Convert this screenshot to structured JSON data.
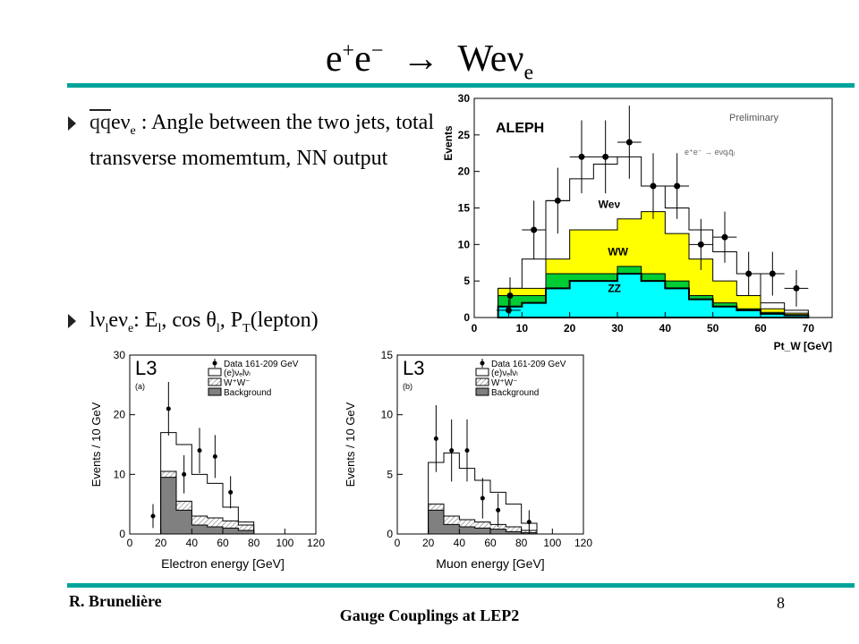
{
  "slide": {
    "title": {
      "main": "e",
      "sup1": "+",
      "mid": "e",
      "sup2": "−",
      "arrow": "→",
      "we": "Weν",
      "sub": "e"
    },
    "bullet1": {
      "prefix": "qq",
      "rest": "eν",
      "sub": "e",
      "text": " : Angle between the two jets, total transverse momemtum, NN output"
    },
    "bullet2": {
      "l": "lν",
      "sub1": "l",
      "e": "eν",
      "sub2": "e",
      "colon": ": E",
      "sub3": "l",
      "cos": ", cos θ",
      "sub4": "l",
      "pt": ", P",
      "sub5": "T",
      "lepton": "(lepton)"
    },
    "footer": {
      "author": "R. Brunelière",
      "center": "Gauge Couplings at LEP2",
      "page": "8"
    }
  },
  "colors": {
    "rule": "#00a49a",
    "ww": "#ffff00",
    "zz": "#00ffff",
    "green": "#00cc33"
  },
  "chart_data": [
    {
      "type": "bar",
      "title": "ALEPH",
      "subtitle": "Preliminary",
      "process_label": "e⁺e⁻ → eνqᵢq̄ⱼ",
      "xlabel": "Pt_W [GeV]",
      "ylabel": "Events",
      "xlim": [
        0,
        75
      ],
      "ylim": [
        0,
        30
      ],
      "xticks": [
        0,
        10,
        20,
        30,
        40,
        50,
        60,
        70
      ],
      "yticks": [
        0,
        5,
        10,
        15,
        20,
        25,
        30
      ],
      "bin_edges": [
        5,
        10,
        15,
        20,
        25,
        30,
        35,
        40,
        45,
        50,
        55,
        60,
        65,
        70
      ],
      "series": [
        {
          "name": "ZZ",
          "values": [
            1.5,
            2,
            4,
            5,
            5,
            6,
            5,
            4,
            2.5,
            1.5,
            1,
            0.5,
            0.3
          ]
        },
        {
          "name": "",
          "values": [
            3,
            3,
            6,
            6,
            6,
            7,
            6,
            5,
            3,
            2,
            1.2,
            0.7,
            0.4
          ]
        },
        {
          "name": "WW",
          "values": [
            4,
            4,
            8,
            12,
            12,
            13.5,
            14.5,
            11.5,
            8,
            5,
            3,
            1.2,
            0.6
          ]
        },
        {
          "name": "Weν",
          "values": [
            4,
            8,
            16,
            19,
            21,
            22,
            18,
            15,
            12,
            9,
            6,
            2,
            1
          ]
        }
      ],
      "data_points": [
        {
          "x": 7.5,
          "y": 3,
          "err": 2.5
        },
        {
          "x": 12.5,
          "y": 12,
          "err": 4
        },
        {
          "x": 17.5,
          "y": 16,
          "err": 4.5
        },
        {
          "x": 22.5,
          "y": 22,
          "err": 5
        },
        {
          "x": 27.5,
          "y": 22,
          "err": 5
        },
        {
          "x": 32.5,
          "y": 24,
          "err": 5
        },
        {
          "x": 37.5,
          "y": 18,
          "err": 4.5
        },
        {
          "x": 42.5,
          "y": 18,
          "err": 4.5
        },
        {
          "x": 47.5,
          "y": 10,
          "err": 3.5
        },
        {
          "x": 52.5,
          "y": 11,
          "err": 3.5
        },
        {
          "x": 57.5,
          "y": 6,
          "err": 3
        },
        {
          "x": 62.5,
          "y": 6,
          "err": 3
        },
        {
          "x": 67.5,
          "y": 4,
          "err": 2.5
        },
        {
          "x": 7.2,
          "y": 1,
          "err": 1.5
        }
      ]
    },
    {
      "type": "bar",
      "title": "L3",
      "panel": "(a)",
      "xlabel": "Electron energy [GeV]",
      "ylabel": "Events / 10 GeV",
      "xlim": [
        0,
        120
      ],
      "ylim": [
        0,
        30
      ],
      "xticks": [
        0,
        20,
        40,
        60,
        80,
        100,
        120
      ],
      "yticks": [
        0,
        10,
        20,
        30
      ],
      "legend": [
        "Data 161-209 GeV",
        "(e)νₑlνₗ",
        "W⁺W⁻",
        "Background"
      ],
      "bin_edges": [
        20,
        30,
        40,
        50,
        60,
        70,
        80
      ],
      "series": [
        {
          "name": "Background",
          "values": [
            9.5,
            4,
            1.5,
            1.2,
            1,
            0.6
          ]
        },
        {
          "name": "W⁺W⁻",
          "values": [
            10.5,
            5.5,
            3,
            2.7,
            2.2,
            1.5
          ]
        },
        {
          "name": "(e)νₑlνₗ",
          "values": [
            17,
            15,
            10,
            8.5,
            4.5,
            2
          ]
        }
      ],
      "data_points": [
        {
          "x": 15,
          "y": 3,
          "err": 2
        },
        {
          "x": 25,
          "y": 21,
          "err": 4.5
        },
        {
          "x": 35,
          "y": 10,
          "err": 3.2
        },
        {
          "x": 45,
          "y": 14,
          "err": 3.8
        },
        {
          "x": 55,
          "y": 13,
          "err": 3.6
        },
        {
          "x": 65,
          "y": 7,
          "err": 2.7
        }
      ]
    },
    {
      "type": "bar",
      "title": "L3",
      "panel": "(b)",
      "xlabel": "Muon energy [GeV]",
      "ylabel": "Events / 10 GeV",
      "xlim": [
        0,
        120
      ],
      "ylim": [
        0,
        15
      ],
      "xticks": [
        0,
        20,
        40,
        60,
        80,
        100,
        120
      ],
      "yticks": [
        0,
        5,
        10,
        15
      ],
      "legend": [
        "Data 161-209 GeV",
        "(e)νₑlνₗ",
        "W⁺W⁻",
        "Background"
      ],
      "bin_edges": [
        20,
        30,
        40,
        50,
        60,
        70,
        80,
        90
      ],
      "series": [
        {
          "name": "Background",
          "values": [
            2,
            0.8,
            0.6,
            0.5,
            0.4,
            0.2,
            0.1
          ]
        },
        {
          "name": "W⁺W⁻",
          "values": [
            2.5,
            1.5,
            1.2,
            1,
            0.8,
            0.6,
            0.3
          ]
        },
        {
          "name": "(e)νₑlνₗ",
          "values": [
            6,
            6.8,
            5.5,
            4.5,
            3.5,
            2.5,
            0.9
          ]
        }
      ],
      "data_points": [
        {
          "x": 25,
          "y": 8,
          "err": 2.8
        },
        {
          "x": 35,
          "y": 7,
          "err": 2.6
        },
        {
          "x": 45,
          "y": 7,
          "err": 2.6
        },
        {
          "x": 55,
          "y": 3,
          "err": 1.7
        },
        {
          "x": 65,
          "y": 2,
          "err": 1.4
        },
        {
          "x": 85,
          "y": 1,
          "err": 1
        }
      ]
    }
  ]
}
